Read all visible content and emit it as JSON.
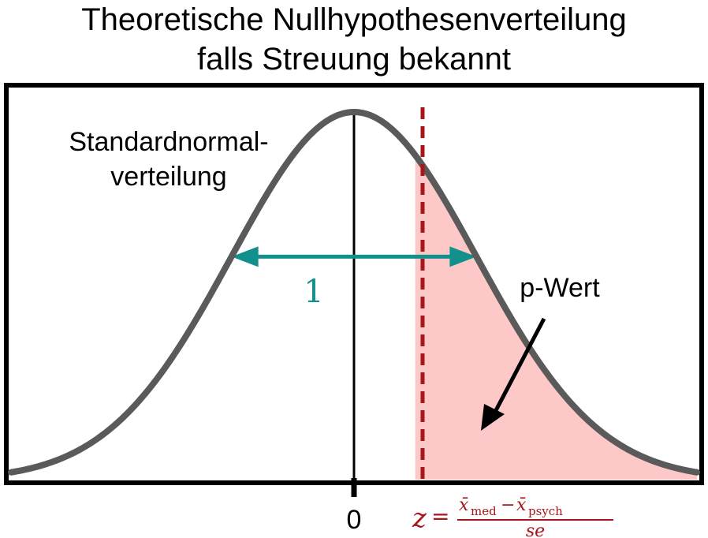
{
  "title_line1": "Theoretische Nullhypothesenverteilung",
  "title_line2": "falls Streuung bekannt",
  "curve_label_line1": "Standardnormal-",
  "curve_label_line2": "verteilung",
  "sd_label": "1",
  "pvalue_label": "p-Wert",
  "x_tick_zero": "0",
  "formula": {
    "z": "z",
    "equals": "=",
    "numerator_left": "x̄",
    "numerator_left_sub": "med",
    "minus": "−",
    "numerator_right": "x̄",
    "numerator_right_sub": "psych",
    "denominator": "se"
  },
  "colors": {
    "curve": "#5a5a5a",
    "shade": "#fcc8c8",
    "threshold": "#a8161a",
    "sd_arrow": "#12918c",
    "frame": "#000000"
  },
  "chart_data": {
    "type": "area",
    "distribution": "standard normal",
    "mean": 0,
    "sd": 1,
    "z_observed": 0.5,
    "shaded_region": "right tail beyond z",
    "sd_arrow_span": [
      -1,
      1
    ],
    "xlim": [
      -2.8,
      2.8
    ]
  }
}
